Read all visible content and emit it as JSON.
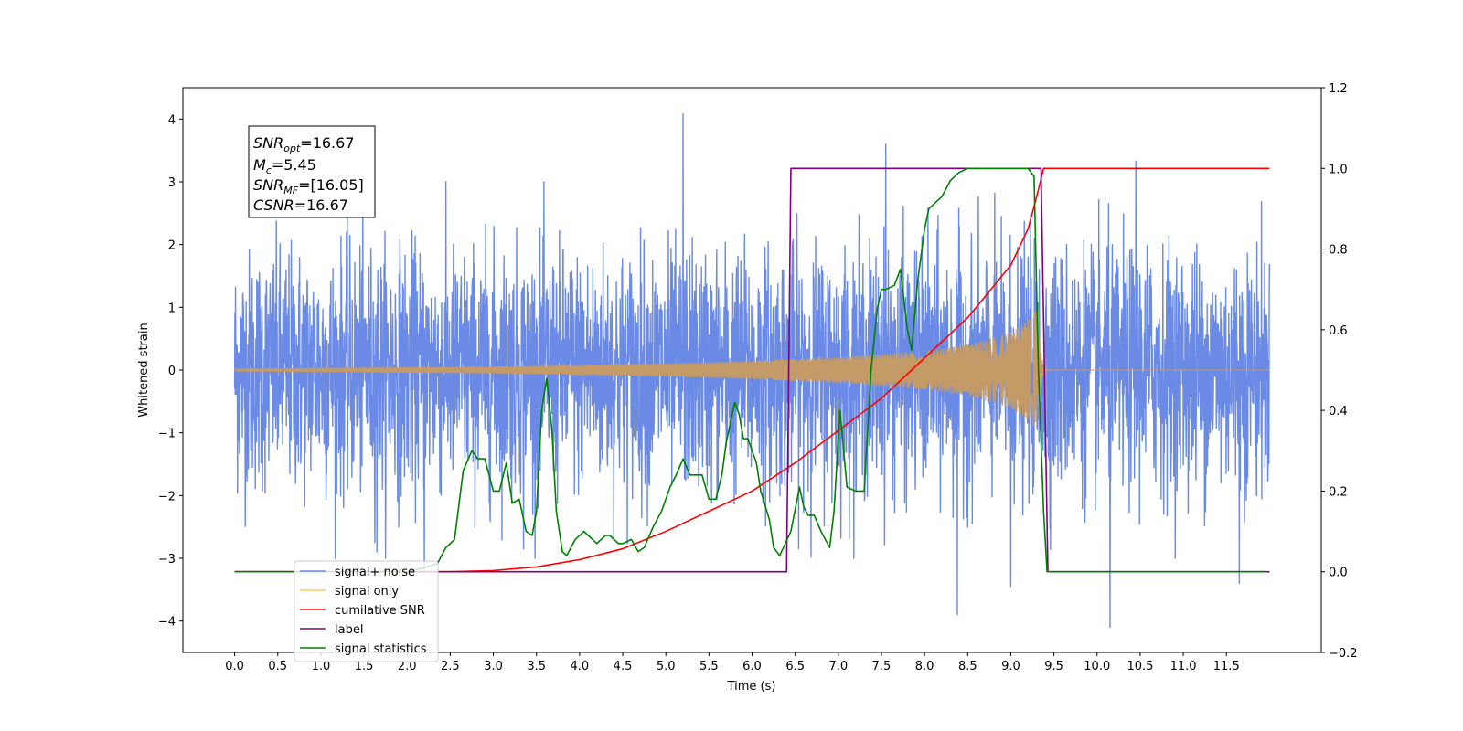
{
  "chart_data": {
    "type": "line",
    "xlabel": "Time (s)",
    "ylabel_left": "Whitened strain",
    "ylabel_right": "",
    "xlim": [
      -0.6,
      12.6
    ],
    "ylim_left": [
      -4.5,
      4.5
    ],
    "ylim_right": [
      -0.2,
      1.2
    ],
    "x_ticks": [
      0.0,
      0.5,
      1.0,
      1.5,
      2.0,
      2.5,
      3.0,
      3.5,
      4.0,
      4.5,
      5.0,
      5.5,
      6.0,
      6.5,
      7.0,
      7.5,
      8.0,
      8.5,
      9.0,
      9.5,
      10.0,
      10.5,
      11.0,
      11.5
    ],
    "x_tick_labels": [
      "0.0",
      "0.5",
      "1.0",
      "1.5",
      "2.0",
      "2.5",
      "3.0",
      "3.5",
      "4.0",
      "4.5",
      "5.0",
      "5.5",
      "6.0",
      "6.5",
      "7.0",
      "7.5",
      "8.0",
      "8.5",
      "9.0",
      "9.5",
      "10.0",
      "10.5",
      "11.0",
      "11.5"
    ],
    "y_left_ticks": [
      -4,
      -3,
      -2,
      -1,
      0,
      1,
      2,
      3,
      4
    ],
    "y_left_tick_labels": [
      "−4",
      "−3",
      "−2",
      "−1",
      "0",
      "1",
      "2",
      "3",
      "4"
    ],
    "y_right_ticks": [
      -0.2,
      0.0,
      0.2,
      0.4,
      0.6,
      0.8,
      1.0,
      1.2
    ],
    "y_right_tick_labels": [
      "−0.2",
      "0.0",
      "0.2",
      "0.4",
      "0.6",
      "0.8",
      "1.0",
      "1.2"
    ],
    "grid": false,
    "legend_placement": "lower-left",
    "series": [
      {
        "name": "signal+ noise",
        "axis": "left",
        "color": "#6a8ae6",
        "style": "dense-noise",
        "x_range": [
          0.0,
          12.0
        ],
        "sigma": 0.95,
        "spikes": [
          {
            "x": 5.2,
            "y": 4.08
          },
          {
            "x": 7.55,
            "y": 3.6
          },
          {
            "x": 10.45,
            "y": 3.33
          },
          {
            "x": 8.38,
            "y": -3.9
          },
          {
            "x": 10.15,
            "y": -4.1
          },
          {
            "x": 9.0,
            "y": -3.45
          },
          {
            "x": 11.65,
            "y": -3.4
          },
          {
            "x": 2.2,
            "y": -3.25
          },
          {
            "x": 1.65,
            "y": -2.9
          },
          {
            "x": 3.35,
            "y": -2.85
          }
        ]
      },
      {
        "name": "signal only",
        "axis": "left",
        "color": "#c49a66",
        "style": "chirp",
        "x_range": [
          0.0,
          12.0
        ],
        "merger_time": 9.32,
        "envelope": [
          [
            0.0,
            0.02
          ],
          [
            3.0,
            0.05
          ],
          [
            5.0,
            0.1
          ],
          [
            6.0,
            0.14
          ],
          [
            7.0,
            0.2
          ],
          [
            8.0,
            0.3
          ],
          [
            8.5,
            0.4
          ],
          [
            9.0,
            0.6
          ],
          [
            9.2,
            0.8
          ],
          [
            9.32,
            1.0
          ]
        ]
      },
      {
        "name": "cumilative SNR",
        "axis": "right",
        "color": "#ff0000",
        "points": [
          [
            0.0,
            0.0
          ],
          [
            2.5,
            0.0
          ],
          [
            3.0,
            0.003
          ],
          [
            3.5,
            0.012
          ],
          [
            4.0,
            0.03
          ],
          [
            4.5,
            0.057
          ],
          [
            5.0,
            0.1
          ],
          [
            5.5,
            0.15
          ],
          [
            6.0,
            0.2
          ],
          [
            6.5,
            0.27
          ],
          [
            7.0,
            0.35
          ],
          [
            7.5,
            0.43
          ],
          [
            8.0,
            0.53
          ],
          [
            8.5,
            0.63
          ],
          [
            9.0,
            0.76
          ],
          [
            9.2,
            0.85
          ],
          [
            9.3,
            0.93
          ],
          [
            9.38,
            1.0
          ],
          [
            12.0,
            1.0
          ]
        ]
      },
      {
        "name": "label",
        "axis": "right",
        "color": "#800080",
        "points": [
          [
            0.0,
            0.0
          ],
          [
            6.4,
            0.0
          ],
          [
            6.45,
            1.0
          ],
          [
            9.35,
            1.0
          ],
          [
            9.43,
            0.0
          ],
          [
            12.0,
            0.0
          ]
        ]
      },
      {
        "name": "signal statistics",
        "axis": "right",
        "color": "#008000",
        "points": [
          [
            0.0,
            0.0
          ],
          [
            2.0,
            0.0
          ],
          [
            2.2,
            0.01
          ],
          [
            2.35,
            0.02
          ],
          [
            2.45,
            0.06
          ],
          [
            2.55,
            0.08
          ],
          [
            2.65,
            0.25
          ],
          [
            2.75,
            0.3
          ],
          [
            2.82,
            0.28
          ],
          [
            2.9,
            0.28
          ],
          [
            3.0,
            0.2
          ],
          [
            3.07,
            0.2
          ],
          [
            3.15,
            0.27
          ],
          [
            3.22,
            0.17
          ],
          [
            3.3,
            0.18
          ],
          [
            3.38,
            0.1
          ],
          [
            3.45,
            0.09
          ],
          [
            3.5,
            0.15
          ],
          [
            3.56,
            0.4
          ],
          [
            3.62,
            0.48
          ],
          [
            3.68,
            0.35
          ],
          [
            3.73,
            0.15
          ],
          [
            3.8,
            0.05
          ],
          [
            3.85,
            0.04
          ],
          [
            3.95,
            0.08
          ],
          [
            4.05,
            0.1
          ],
          [
            4.1,
            0.09
          ],
          [
            4.2,
            0.07
          ],
          [
            4.3,
            0.09
          ],
          [
            4.35,
            0.09
          ],
          [
            4.45,
            0.07
          ],
          [
            4.5,
            0.07
          ],
          [
            4.6,
            0.08
          ],
          [
            4.68,
            0.05
          ],
          [
            4.75,
            0.06
          ],
          [
            4.85,
            0.11
          ],
          [
            4.95,
            0.15
          ],
          [
            5.05,
            0.21
          ],
          [
            5.12,
            0.24
          ],
          [
            5.2,
            0.28
          ],
          [
            5.28,
            0.24
          ],
          [
            5.35,
            0.24
          ],
          [
            5.42,
            0.24
          ],
          [
            5.5,
            0.18
          ],
          [
            5.58,
            0.18
          ],
          [
            5.65,
            0.24
          ],
          [
            5.7,
            0.32
          ],
          [
            5.75,
            0.37
          ],
          [
            5.8,
            0.42
          ],
          [
            5.85,
            0.39
          ],
          [
            5.9,
            0.33
          ],
          [
            5.95,
            0.33
          ],
          [
            6.0,
            0.3
          ],
          [
            6.05,
            0.27
          ],
          [
            6.1,
            0.2
          ],
          [
            6.2,
            0.13
          ],
          [
            6.25,
            0.06
          ],
          [
            6.32,
            0.04
          ],
          [
            6.45,
            0.1
          ],
          [
            6.55,
            0.21
          ],
          [
            6.6,
            0.16
          ],
          [
            6.65,
            0.14
          ],
          [
            6.72,
            0.14
          ],
          [
            6.8,
            0.1
          ],
          [
            6.9,
            0.06
          ],
          [
            6.95,
            0.15
          ],
          [
            7.02,
            0.4
          ],
          [
            7.1,
            0.21
          ],
          [
            7.2,
            0.2
          ],
          [
            7.3,
            0.2
          ],
          [
            7.38,
            0.5
          ],
          [
            7.45,
            0.65
          ],
          [
            7.5,
            0.7
          ],
          [
            7.55,
            0.7
          ],
          [
            7.65,
            0.71
          ],
          [
            7.72,
            0.75
          ],
          [
            7.8,
            0.6
          ],
          [
            7.85,
            0.55
          ],
          [
            7.92,
            0.72
          ],
          [
            8.0,
            0.85
          ],
          [
            8.05,
            0.9
          ],
          [
            8.15,
            0.92
          ],
          [
            8.2,
            0.93
          ],
          [
            8.3,
            0.97
          ],
          [
            8.4,
            0.99
          ],
          [
            8.5,
            1.0
          ],
          [
            9.2,
            1.0
          ],
          [
            9.27,
            0.98
          ],
          [
            9.32,
            0.5
          ],
          [
            9.38,
            0.15
          ],
          [
            9.42,
            0.0
          ],
          [
            11.95,
            0.0
          ]
        ]
      }
    ]
  },
  "stats_box": {
    "snr_opt_value": "=16.67",
    "mc_value": "=5.45",
    "snr_mf_value": "=[16.05]",
    "csnr_value": "=16.67"
  },
  "legend": {
    "items": [
      {
        "label": "signal+ noise",
        "color": "#6a8ae6"
      },
      {
        "label": "signal only",
        "color": "#ffc766"
      },
      {
        "label": "cumilative SNR",
        "color": "#ff0000"
      },
      {
        "label": "label",
        "color": "#800080"
      },
      {
        "label": "signal statistics",
        "color": "#008000"
      }
    ]
  }
}
